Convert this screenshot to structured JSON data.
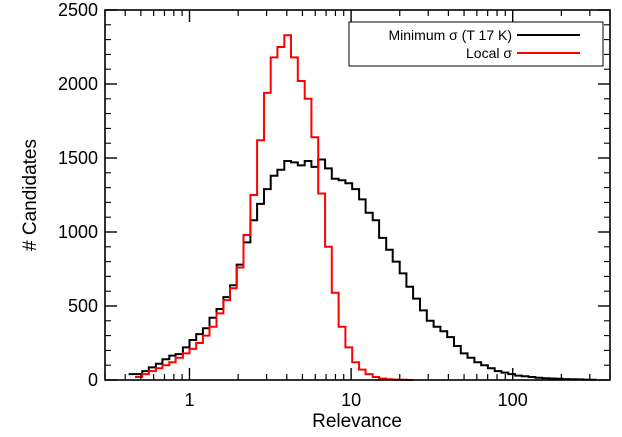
{
  "chart_data": {
    "type": "line",
    "drawstyle": "histogram-step",
    "xlabel": "Relevance",
    "ylabel": "# Candidates",
    "xscale": "log",
    "xlim": [
      0.3,
      400
    ],
    "ylim": [
      0,
      2500
    ],
    "xticks": [
      {
        "value": 1,
        "label": "1"
      },
      {
        "value": 10,
        "label": "10"
      },
      {
        "value": 100,
        "label": "100"
      }
    ],
    "yticks": [
      {
        "value": 0,
        "label": "0"
      },
      {
        "value": 500,
        "label": "500"
      },
      {
        "value": 1000,
        "label": "1000"
      },
      {
        "value": 1500,
        "label": "1500"
      },
      {
        "value": 2000,
        "label": "2000"
      },
      {
        "value": 2500,
        "label": "2500"
      }
    ],
    "grid": false,
    "legend_position": "top-right",
    "bin_edges": [
      0.42,
      0.46,
      0.51,
      0.56,
      0.62,
      0.68,
      0.75,
      0.82,
      0.91,
      1.0,
      1.1,
      1.21,
      1.33,
      1.47,
      1.62,
      1.78,
      1.96,
      2.16,
      2.38,
      2.62,
      2.89,
      3.18,
      3.5,
      3.86,
      4.25,
      4.68,
      5.16,
      5.68,
      6.26,
      6.9,
      7.6,
      8.37,
      9.22,
      10.16,
      11.2,
      12.3,
      13.6,
      14.9,
      16.5,
      18.1,
      20.0,
      22.0,
      24.2,
      26.7,
      29.4,
      32.4,
      35.7,
      39.3,
      43.3,
      47.7,
      52.5,
      57.9,
      63.8,
      70.2,
      77.4,
      85.2,
      93.9,
      103.4,
      113.9,
      125.5,
      138.2,
      152.3,
      167.8,
      184.8,
      203.6,
      224.3,
      247.1,
      272.2,
      299.9,
      330.4
    ],
    "series": [
      {
        "name": "Minimum σ (T 17 K)",
        "color": "#000000",
        "values": [
          40,
          40,
          60,
          85,
          110,
          140,
          165,
          175,
          220,
          270,
          310,
          350,
          420,
          480,
          560,
          640,
          780,
          930,
          1080,
          1190,
          1290,
          1380,
          1420,
          1480,
          1470,
          1450,
          1480,
          1440,
          1490,
          1430,
          1360,
          1350,
          1330,
          1290,
          1220,
          1130,
          1080,
          960,
          880,
          800,
          720,
          630,
          550,
          470,
          400,
          360,
          330,
          290,
          230,
          180,
          150,
          120,
          100,
          80,
          60,
          50,
          40,
          30,
          25,
          20,
          15,
          12,
          10,
          8,
          6,
          5,
          4,
          3,
          2
        ],
        "visible_bins": [
          0,
          68
        ]
      },
      {
        "name": "Local σ",
        "color": "#ff0000",
        "values": [
          0,
          20,
          40,
          60,
          80,
          100,
          120,
          150,
          180,
          210,
          250,
          300,
          360,
          450,
          540,
          620,
          760,
          980,
          1250,
          1620,
          1940,
          2180,
          2250,
          2330,
          2180,
          2020,
          1900,
          1640,
          1260,
          900,
          590,
          360,
          220,
          120,
          70,
          40,
          20,
          10,
          5,
          3,
          2,
          0
        ],
        "visible_bins": [
          1,
          41
        ]
      }
    ]
  }
}
